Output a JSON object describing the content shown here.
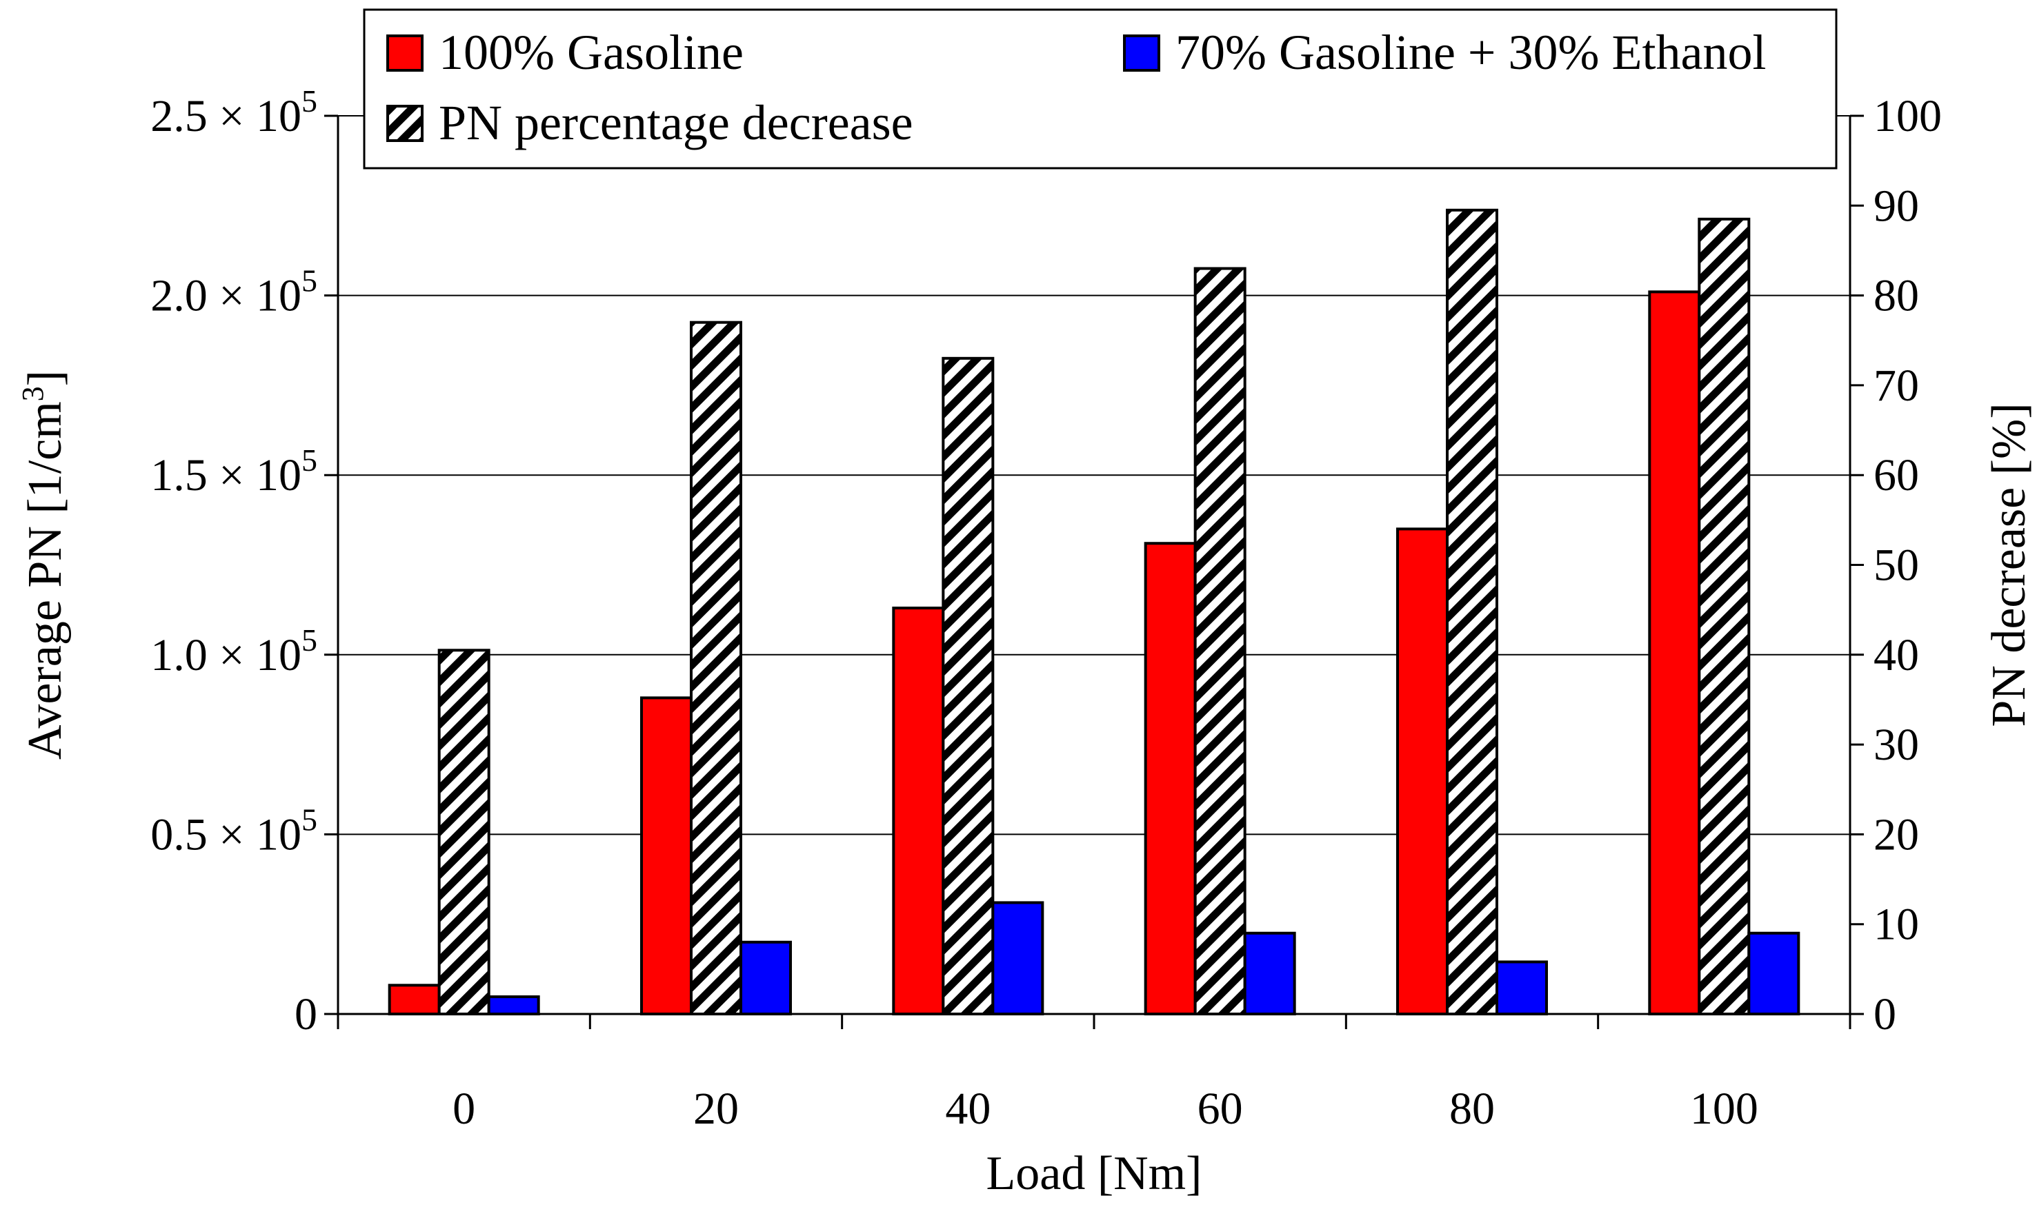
{
  "chart_data": {
    "type": "bar",
    "categories": [
      "0",
      "20",
      "40",
      "60",
      "80",
      "100"
    ],
    "xlabel": "Load [Nm]",
    "ylabel_left_prefix": "Average PN [1/cm",
    "ylabel_left_sup": "3",
    "ylabel_left_suffix": "]",
    "ylabel_right": "PN decrease [%]",
    "ylim_left": [
      0,
      250000
    ],
    "ylim_right": [
      0,
      100
    ],
    "left_ticks": [
      {
        "value": 0,
        "label": "0"
      },
      {
        "value": 50000,
        "mant": "0.5 × 10",
        "exp": "5"
      },
      {
        "value": 100000,
        "mant": "1.0 × 10",
        "exp": "5"
      },
      {
        "value": 150000,
        "mant": "1.5 × 10",
        "exp": "5"
      },
      {
        "value": 200000,
        "mant": "2.0 × 10",
        "exp": "5"
      },
      {
        "value": 250000,
        "mant": "2.5 × 10",
        "exp": "5"
      }
    ],
    "right_ticks": [
      "0",
      "10",
      "20",
      "30",
      "40",
      "50",
      "60",
      "70",
      "80",
      "90",
      "100"
    ],
    "grid": "horizontal",
    "legend_position": "top",
    "series": [
      {
        "name": "100% Gasoline",
        "axis": "left",
        "color": "#ff0000",
        "pattern": "solid",
        "values": [
          8000,
          88000,
          113000,
          131000,
          135000,
          201000
        ]
      },
      {
        "name": "PN percentage decrease",
        "axis": "right",
        "color": "#ffffff",
        "pattern": "diagonal-hatch",
        "values": [
          40.5,
          77,
          73,
          83,
          89.5,
          88.5
        ]
      },
      {
        "name": "70% Gasoline + 30% Ethanol",
        "axis": "left",
        "color": "#0000ff",
        "pattern": "solid",
        "values": [
          4800,
          20000,
          31000,
          22500,
          14500,
          22500
        ]
      }
    ]
  },
  "legend": {
    "items": [
      {
        "label": "100% Gasoline",
        "series": 0
      },
      {
        "label": "70% Gasoline + 30% Ethanol",
        "series": 2
      },
      {
        "label": "PN percentage decrease",
        "series": 1
      }
    ]
  }
}
